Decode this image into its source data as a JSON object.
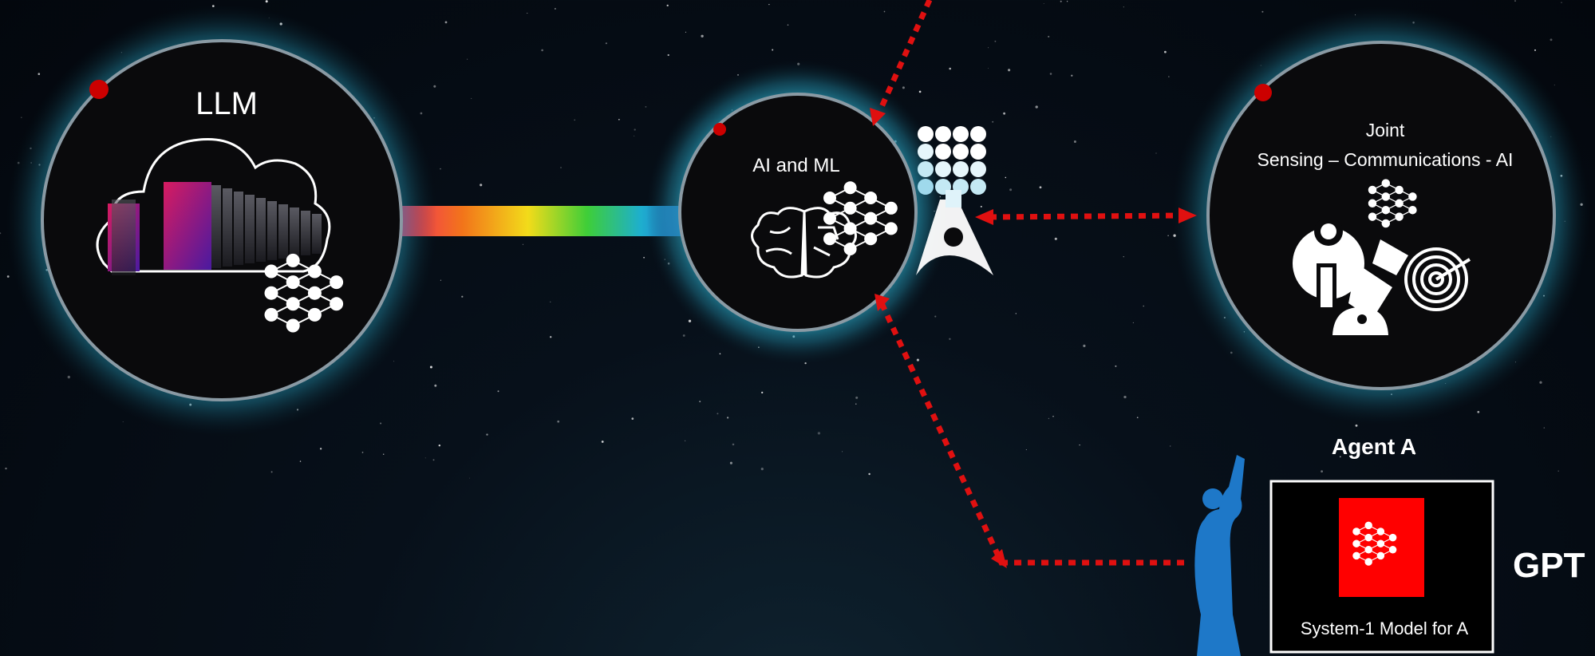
{
  "nodes": {
    "llm": {
      "label": "LLM"
    },
    "ai_ml": {
      "label": "AI and ML"
    },
    "joint": {
      "line1": "Joint",
      "line2": "Sensing – Communications - AI"
    }
  },
  "agent": {
    "title": "Agent A",
    "model_label": "System-1 Model for A",
    "side_label": "GPT"
  },
  "colors": {
    "ring_glow": "#2aa7c4",
    "link_dotted": "#e01010",
    "marker_dot": "#cc0000",
    "agent_model_box": "#ff0000",
    "human_figure": "#1e78c8"
  },
  "icons": [
    "server-rack-cloud-icon",
    "neural-network-icon",
    "brain-circuit-icon",
    "antenna-tower-icon",
    "sensing-radar-icon",
    "human-silhouette-icon"
  ]
}
